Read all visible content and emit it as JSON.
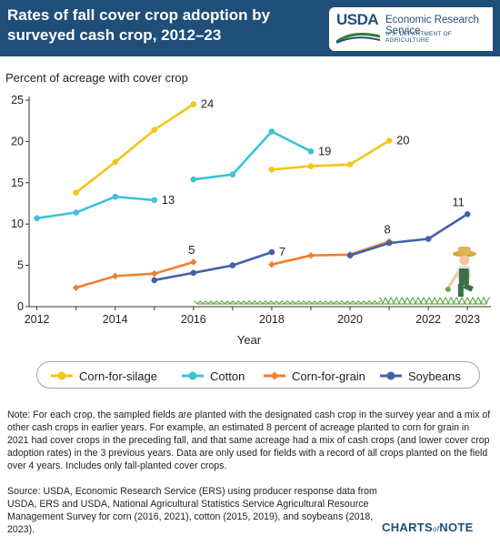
{
  "header": {
    "title": "Rates of fall cover crop adoption by surveyed cash crop, 2012–23",
    "logo_text": "USDA",
    "agency": "Economic Research Service",
    "department": "U.S. DEPARTMENT OF AGRICULTURE"
  },
  "colors": {
    "header_bg": "#1f4e79",
    "corn_silage": "#f5c518",
    "cotton": "#3cc3d6",
    "corn_grain": "#f07f2f",
    "soybeans": "#4561a8",
    "axis": "#333333",
    "grass": "#6aa84f"
  },
  "chart_data": {
    "type": "line",
    "ylabel": "Percent of acreage with cover crop",
    "xlabel": "Year",
    "ylim": [
      0,
      25
    ],
    "xlim": [
      2011.8,
      2023.6
    ],
    "y_ticks": [
      0,
      5,
      10,
      15,
      20,
      25
    ],
    "x_ticks": [
      2012,
      2014,
      2016,
      2018,
      2020,
      2022,
      2023
    ],
    "grid": false,
    "series": [
      {
        "name": "Corn-for-silage",
        "color": "#f5c518",
        "segments": [
          [
            [
              2013,
              13.8
            ],
            [
              2014,
              17.5
            ],
            [
              2015,
              21.4
            ],
            [
              2016,
              24.5
            ]
          ],
          [
            [
              2018,
              16.6
            ],
            [
              2019,
              17.0
            ],
            [
              2020,
              17.2
            ],
            [
              2021,
              20.1
            ]
          ]
        ],
        "end_labels": [
          {
            "x": 2016,
            "y": 24.5,
            "text": "24"
          },
          {
            "x": 2021,
            "y": 20.1,
            "text": "20"
          }
        ]
      },
      {
        "name": "Cotton",
        "color": "#3cc3d6",
        "segments": [
          [
            [
              2012,
              10.7
            ],
            [
              2013,
              11.4
            ],
            [
              2014,
              13.3
            ],
            [
              2015,
              12.9
            ]
          ],
          [
            [
              2016,
              15.4
            ],
            [
              2017,
              16.0
            ],
            [
              2018,
              21.2
            ],
            [
              2019,
              18.8
            ]
          ]
        ],
        "end_labels": [
          {
            "x": 2015,
            "y": 12.9,
            "text": "13"
          },
          {
            "x": 2019,
            "y": 18.8,
            "text": "19"
          }
        ]
      },
      {
        "name": "Corn-for-grain",
        "color": "#f07f2f",
        "segments": [
          [
            [
              2013,
              2.3
            ],
            [
              2014,
              3.7
            ],
            [
              2015,
              4.0
            ],
            [
              2016,
              5.4
            ]
          ],
          [
            [
              2018,
              5.1
            ],
            [
              2019,
              6.2
            ],
            [
              2020,
              6.3
            ],
            [
              2021,
              7.9
            ]
          ]
        ],
        "end_labels": [
          {
            "x": 2016,
            "y": 5.4,
            "text": "5"
          },
          {
            "x": 2021,
            "y": 7.9,
            "text": "8"
          }
        ]
      },
      {
        "name": "Soybeans",
        "color": "#4561a8",
        "segments": [
          [
            [
              2015,
              3.2
            ],
            [
              2016,
              4.1
            ],
            [
              2017,
              5.0
            ],
            [
              2018,
              6.6
            ]
          ],
          [
            [
              2020,
              6.2
            ],
            [
              2021,
              7.7
            ],
            [
              2022,
              8.2
            ],
            [
              2023,
              11.2
            ]
          ]
        ],
        "end_labels": [
          {
            "x": 2018,
            "y": 6.6,
            "text": "7"
          },
          {
            "x": 2023,
            "y": 11.2,
            "text": "11"
          }
        ]
      }
    ],
    "legend_placement": "bottom"
  },
  "note": "Note: For each crop, the sampled fields are planted with the designated cash crop in the survey year and a mix of other cash crops in earlier years. For example, an estimated 8 percent of acreage planted to corn for grain in 2021 had cover crops in the preceding fall, and that same acreage had a mix of cash crops (and lower cover crop adoption rates) in the 3 previous years. Data are only used for fields with a record of all crops planted on the field over 4 years. Includes only fall-planted cover crops.",
  "source": "Source: USDA, Economic Research Service (ERS) using producer response data from USDA, ERS and USDA, National Agricultural Statistics Service Agricultural Resource Management Survey for corn (2016, 2021), cotton (2015, 2019), and soybeans (2018, 2023).",
  "brand": {
    "left": "CHARTS",
    "mid": "of",
    "right": "NOTE"
  }
}
